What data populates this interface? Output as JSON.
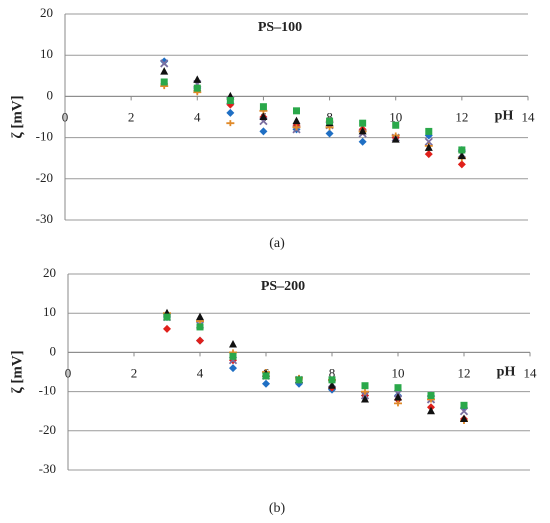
{
  "chart_data": [
    {
      "type": "scatter",
      "title": "PS–100",
      "x_label": "pH",
      "y_label": "ζ [mV]",
      "caption": "(a)",
      "xlim": [
        0,
        14
      ],
      "xticks": [
        0,
        2,
        4,
        6,
        8,
        10,
        12,
        14
      ],
      "ylim": [
        -30,
        20
      ],
      "yticks": [
        -30,
        -20,
        -10,
        0,
        10,
        20
      ],
      "grid": true,
      "x": [
        3,
        4,
        5,
        6,
        7,
        8,
        9,
        10,
        11,
        12
      ],
      "series": [
        {
          "color": "#1f6fc4",
          "marker": "diamond",
          "values": [
            8.5,
            2,
            -4,
            -8.5,
            -8,
            -9,
            -11,
            -10,
            -9.5,
            -13
          ]
        },
        {
          "color": "#e0201b",
          "marker": "diamond",
          "values": [
            3,
            1.5,
            -2,
            -5,
            -7,
            -6,
            -8,
            -10,
            -14,
            -16.5
          ]
        },
        {
          "color": "#7b6fa0",
          "marker": "cross",
          "values": [
            8,
            3,
            -1,
            -6,
            -8,
            -7,
            -9,
            -10,
            -11,
            -14
          ]
        },
        {
          "color": "#e08a2a",
          "marker": "plus",
          "values": [
            2.5,
            1,
            -6.5,
            -3.5,
            -7.5,
            -7.5,
            -8.5,
            -9.5,
            -12,
            -15
          ]
        },
        {
          "color": "#111111",
          "marker": "triangle",
          "values": [
            6,
            4,
            0,
            -5,
            -6,
            -6.5,
            -8.5,
            -10.5,
            -12.5,
            -14.5
          ]
        },
        {
          "color": "#2aa84a",
          "marker": "square",
          "values": [
            3.5,
            2,
            -1,
            -2.5,
            -3.5,
            -6,
            -6.5,
            -7,
            -8.5,
            -13
          ]
        }
      ]
    },
    {
      "type": "scatter",
      "title": "PS–200",
      "x_label": "pH",
      "y_label": "ζ [mV]",
      "caption": "(b)",
      "xlim": [
        0,
        14
      ],
      "xticks": [
        0,
        2,
        4,
        6,
        8,
        10,
        12,
        14
      ],
      "ylim": [
        -30,
        20
      ],
      "yticks": [
        -30,
        -20,
        -10,
        0,
        10,
        20
      ],
      "grid": true,
      "x": [
        3,
        4,
        5,
        6,
        7,
        8,
        9,
        10,
        11,
        12
      ],
      "series": [
        {
          "color": "#1f6fc4",
          "marker": "diamond",
          "values": [
            9,
            3,
            -4,
            -8,
            -8,
            -9.5,
            -11,
            -11,
            -11,
            -14
          ]
        },
        {
          "color": "#e0201b",
          "marker": "diamond",
          "values": [
            6,
            3,
            -2,
            -6,
            -7,
            -9,
            -11,
            -12,
            -14,
            -17
          ]
        },
        {
          "color": "#7b6fa0",
          "marker": "cross",
          "values": [
            9,
            7,
            -2,
            -6,
            -7,
            -8,
            -11,
            -10.5,
            -12,
            -15
          ]
        },
        {
          "color": "#e08a2a",
          "marker": "plus",
          "values": [
            10,
            8,
            0,
            -5,
            -6.5,
            -7,
            -10,
            -13,
            -12,
            -17.5
          ]
        },
        {
          "color": "#111111",
          "marker": "triangle",
          "values": [
            10,
            9,
            2,
            -5.5,
            -7,
            -8.5,
            -12,
            -11.5,
            -15,
            -17
          ]
        },
        {
          "color": "#2aa84a",
          "marker": "square",
          "values": [
            9,
            6.5,
            -1,
            -6,
            -7,
            -7,
            -8.5,
            -9,
            -11,
            -13.5
          ]
        }
      ]
    }
  ]
}
